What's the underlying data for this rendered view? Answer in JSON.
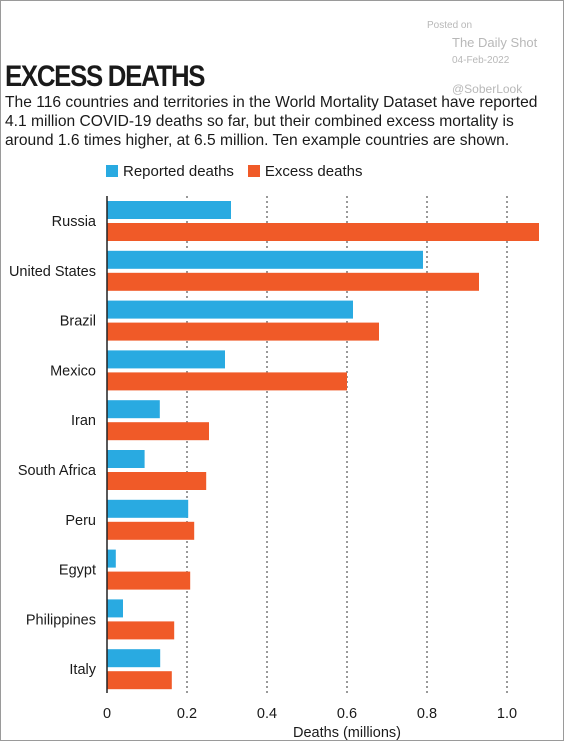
{
  "watermark": {
    "posted": "Posted on",
    "source": "The Daily Shot",
    "date": "04-Feb-2022",
    "handle": "@SoberLook"
  },
  "chart_data": {
    "type": "bar",
    "orientation": "horizontal",
    "title": "EXCESS DEATHS",
    "subtitle": "The 116 countries and territories in the World Mortality Dataset have reported 4.1 million COVID-19 deaths so far, but their combined excess mortality is around 1.6 times higher, at 6.5 million. Ten example countries are shown.",
    "xlabel": "Deaths (millions)",
    "ylabel": "",
    "xlim": [
      0,
      1.1
    ],
    "xticks": [
      0,
      0.2,
      0.4,
      0.6,
      0.8,
      1.0
    ],
    "xtick_labels": [
      "0",
      "0.2",
      "0.4",
      "0.6",
      "0.8",
      "1.0"
    ],
    "grid": "vertical dotted",
    "legend_position": "top-left",
    "categories": [
      "Russia",
      "United States",
      "Brazil",
      "Mexico",
      "Iran",
      "South Africa",
      "Peru",
      "Egypt",
      "Philippines",
      "Italy"
    ],
    "series": [
      {
        "name": "Reported deaths",
        "color": "#29aae1",
        "values": [
          0.31,
          0.79,
          0.615,
          0.295,
          0.132,
          0.094,
          0.203,
          0.022,
          0.04,
          0.133
        ]
      },
      {
        "name": "Excess deaths",
        "color": "#f05a28",
        "values": [
          1.08,
          0.93,
          0.68,
          0.6,
          0.255,
          0.248,
          0.218,
          0.208,
          0.168,
          0.162
        ]
      }
    ]
  }
}
